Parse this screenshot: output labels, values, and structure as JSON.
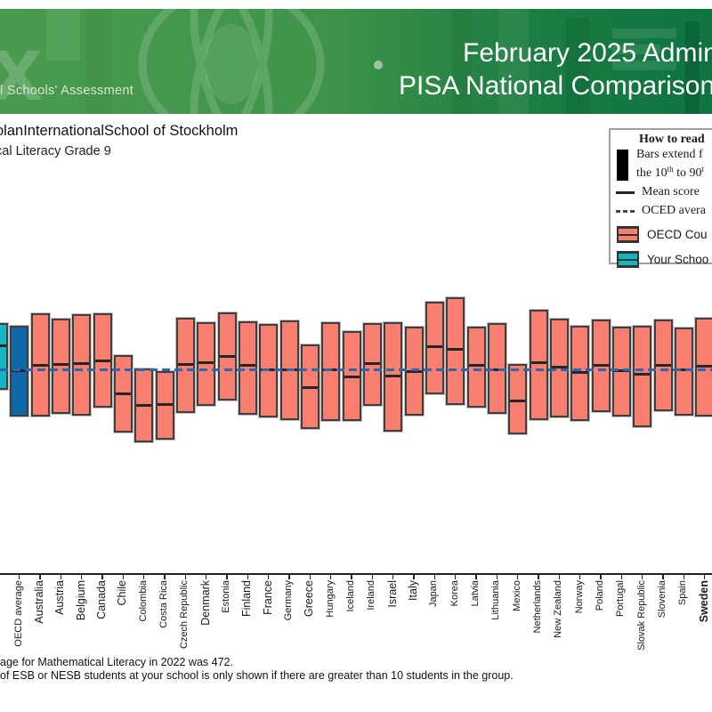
{
  "header": {
    "banner": {
      "left_text": "l Schools' Assessment",
      "title_line1": "February 2025 Adminis",
      "title_line2": "PISA National Comparisons"
    },
    "school_line1": "olanInternationalSchool of Stockholm",
    "school_line2": "cal Literacy Grade 9"
  },
  "legend": {
    "title": "How to read",
    "bars_line1": "Bars extend f",
    "bars_line2_a": "the 10",
    "bars_line2_sup1": "th",
    "bars_line2_b": " to 90",
    "bars_line2_sup2": "t",
    "mean_label": "Mean score",
    "oecd_line_label": "OCED avera",
    "oecd_box_label": "OECD Cou",
    "school_box_label": "Your Schoo"
  },
  "footnotes": [
    "age for Mathematical Literacy in 2022 was 472.",
    "of ESB or NESB students at your school is only shown if there are greater than 10 students in the group."
  ],
  "colors": {
    "country_bar": "#f87e70",
    "school_bar": "#12b5c0",
    "oecd_bar": "#1168a8",
    "mean_line": "#262626",
    "oecd_dashed_line": "#2f66ad",
    "banner_green_left": "#4a9b50",
    "banner_green_right": "#0d7340"
  },
  "chart_data": {
    "type": "bar",
    "subtype": "percentile-range-bars",
    "description": "Bars extend from the 10th to 90th percentile; black line = mean score; blue dashed line = OECD average.",
    "oecd_average": 472,
    "y_axis_visible": false,
    "legend_position": "top-right",
    "groups": [
      {
        "label": "",
        "role": "school",
        "p10": 424,
        "mean": 533,
        "p90": 588
      },
      {
        "label": "OECD average",
        "role": "oecd_average",
        "p10": 358,
        "mean": 472,
        "p90": 582
      },
      {
        "label": "Australia",
        "role": "country",
        "large": true,
        "p10": 358,
        "mean": 485,
        "p90": 612
      },
      {
        "label": "Austria",
        "role": "country",
        "large": true,
        "p10": 363,
        "mean": 487,
        "p90": 600
      },
      {
        "label": "Belgium",
        "role": "country",
        "large": true,
        "p10": 360,
        "mean": 489,
        "p90": 610
      },
      {
        "label": "Canada",
        "role": "country",
        "large": true,
        "p10": 380,
        "mean": 495,
        "p90": 613
      },
      {
        "label": "Chile",
        "role": "country",
        "large": true,
        "p10": 318,
        "mean": 413,
        "p90": 509
      },
      {
        "label": "Colombia",
        "role": "country",
        "p10": 294,
        "mean": 384,
        "p90": 477
      },
      {
        "label": "Costa Rica",
        "role": "country",
        "p10": 300,
        "mean": 388,
        "p90": 469
      },
      {
        "label": "Czech Republic",
        "role": "country",
        "p10": 366,
        "mean": 487,
        "p90": 602
      },
      {
        "label": "Denmark",
        "role": "country",
        "large": true,
        "p10": 384,
        "mean": 491,
        "p90": 590
      },
      {
        "label": "Estonia",
        "role": "country",
        "p10": 397,
        "mean": 507,
        "p90": 615
      },
      {
        "label": "Finland",
        "role": "country",
        "large": true,
        "p10": 362,
        "mean": 484,
        "p90": 594
      },
      {
        "label": "France",
        "role": "country",
        "large": true,
        "p10": 355,
        "mean": 473,
        "p90": 586
      },
      {
        "label": "Germany",
        "role": "country",
        "p10": 349,
        "mean": 473,
        "p90": 595
      },
      {
        "label": "Greece",
        "role": "country",
        "large": true,
        "p10": 327,
        "mean": 430,
        "p90": 536
      },
      {
        "label": "Hungary",
        "role": "country",
        "p10": 346,
        "mean": 472,
        "p90": 590
      },
      {
        "label": "Iceland",
        "role": "country",
        "p10": 347,
        "mean": 456,
        "p90": 569
      },
      {
        "label": "Ireland",
        "role": "country",
        "p10": 385,
        "mean": 489,
        "p90": 588
      },
      {
        "label": "Israel",
        "role": "country",
        "large": true,
        "p10": 320,
        "mean": 457,
        "p90": 591
      },
      {
        "label": "Italy",
        "role": "country",
        "large": true,
        "p10": 359,
        "mean": 469,
        "p90": 580
      },
      {
        "label": "Japan",
        "role": "country",
        "p10": 412,
        "mean": 531,
        "p90": 641
      },
      {
        "label": "Korea",
        "role": "country",
        "p10": 386,
        "mean": 523,
        "p90": 652
      },
      {
        "label": "Latvia",
        "role": "country",
        "p10": 380,
        "mean": 483,
        "p90": 580
      },
      {
        "label": "Lithuania",
        "role": "country",
        "p10": 364,
        "mean": 472,
        "p90": 588
      },
      {
        "label": "Mexico",
        "role": "country",
        "p10": 313,
        "mean": 395,
        "p90": 487
      },
      {
        "label": "Netherlands",
        "role": "country",
        "p10": 349,
        "mean": 491,
        "p90": 621
      },
      {
        "label": "New Zealand",
        "role": "country",
        "p10": 355,
        "mean": 480,
        "p90": 600
      },
      {
        "label": "Norway",
        "role": "country",
        "p10": 346,
        "mean": 467,
        "p90": 583
      },
      {
        "label": "Poland",
        "role": "country",
        "p10": 368,
        "mean": 485,
        "p90": 597
      },
      {
        "label": "Portugal",
        "role": "country",
        "p10": 357,
        "mean": 470,
        "p90": 580
      },
      {
        "label": "Slovak Republic",
        "role": "country",
        "p10": 331,
        "mean": 463,
        "p90": 582
      },
      {
        "label": "Slovenia",
        "role": "country",
        "p10": 371,
        "mean": 485,
        "p90": 597
      },
      {
        "label": "Spain",
        "role": "country",
        "p10": 360,
        "mean": 473,
        "p90": 577
      },
      {
        "label": "Sweden",
        "role": "country",
        "large": true,
        "bold": true,
        "p10": 357,
        "mean": 481,
        "p90": 601
      }
    ]
  }
}
